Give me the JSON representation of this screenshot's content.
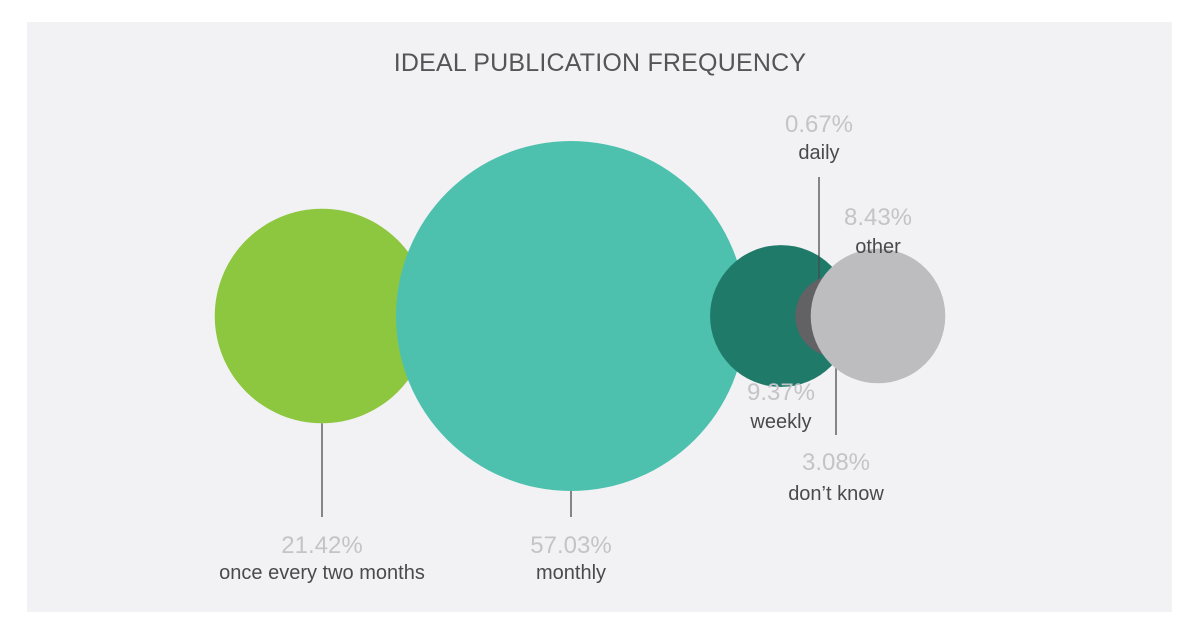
{
  "chart_data": {
    "type": "bubble",
    "title": "IDEAL PUBLICATION FREQUENCY",
    "series": [
      {
        "key": "once_every_two_months",
        "label": "once every two months",
        "value": 21.42,
        "value_label": "21.42%",
        "color": "#8dc63f"
      },
      {
        "key": "monthly",
        "label": "monthly",
        "value": 57.03,
        "value_label": "57.03%",
        "color": "#4ec1ae"
      },
      {
        "key": "weekly",
        "label": "weekly",
        "value": 9.37,
        "value_label": "9.37%",
        "color": "#1f7a6a"
      },
      {
        "key": "daily",
        "label": "daily",
        "value": 0.67,
        "value_label": "0.67%",
        "color": "#555558"
      },
      {
        "key": "dont_know",
        "label": "don’t know",
        "value": 3.08,
        "value_label": "3.08%",
        "color": "#626265"
      },
      {
        "key": "other",
        "label": "other",
        "value": 8.43,
        "value_label": "8.43%",
        "color": "#bdbdc0"
      }
    ]
  }
}
